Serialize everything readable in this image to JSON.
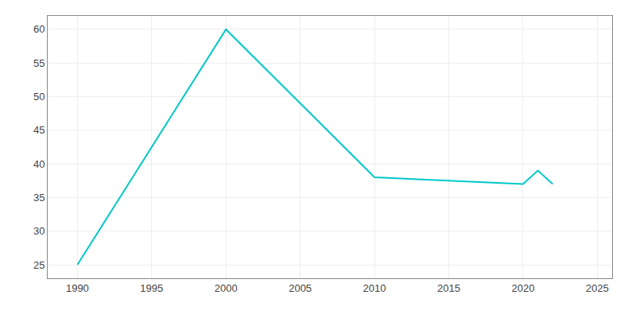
{
  "chart_data": {
    "type": "line",
    "x": [
      1990,
      2000,
      2010,
      2015,
      2020,
      2021,
      2022
    ],
    "values": [
      25,
      60,
      38,
      37.5,
      37,
      39,
      37
    ],
    "color": "#00c8c8",
    "xlim": [
      1988,
      2026
    ],
    "ylim": [
      23,
      62
    ],
    "xticks": [
      1990,
      1995,
      2000,
      2005,
      2010,
      2015,
      2020,
      2025
    ],
    "yticks": [
      25,
      30,
      35,
      40,
      45,
      50,
      55,
      60
    ],
    "grid": true
  }
}
